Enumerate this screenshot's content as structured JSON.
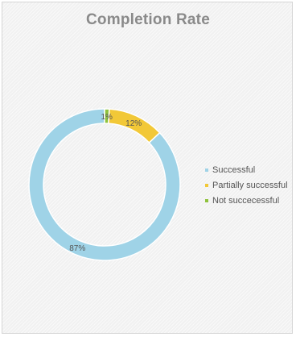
{
  "chart_data": {
    "type": "pie",
    "subtype": "donut",
    "title": "Completion Rate",
    "categories": [
      "Successful",
      "Partially successful",
      "Not succecessful"
    ],
    "values": [
      87,
      12,
      1
    ],
    "data_labels": [
      "87%",
      "12%",
      "1%"
    ],
    "colors": [
      "#9fd3e7",
      "#f2c837",
      "#8fc23c"
    ],
    "legend_position": "right",
    "start_angle_deg": 0,
    "direction": "counterclockwise"
  }
}
